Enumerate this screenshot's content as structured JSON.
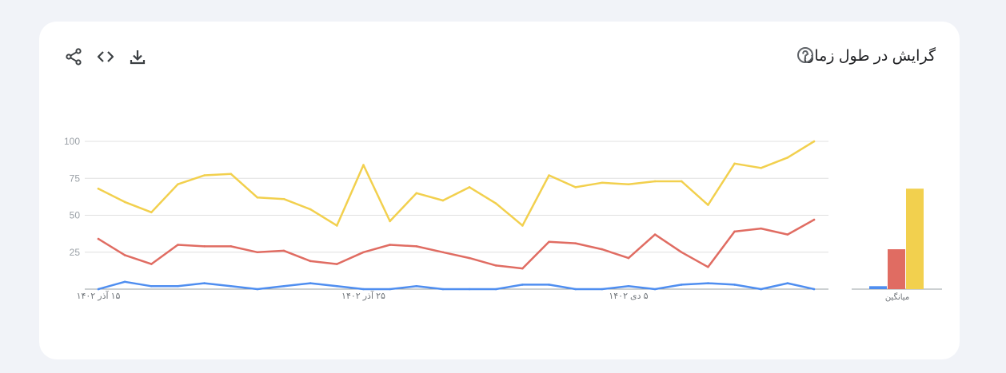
{
  "header": {
    "title": "گرایش در طول زمان",
    "help_icon": "help-circle-icon",
    "tools": [
      {
        "name": "share",
        "icon": "share-icon"
      },
      {
        "name": "embed",
        "icon": "code-icon"
      },
      {
        "name": "download",
        "icon": "download-icon"
      }
    ]
  },
  "colors": {
    "blue": "#4285f4",
    "red": "#db4437",
    "yellow": "#f4c20d"
  },
  "chart_data": [
    {
      "type": "line",
      "ylim": [
        0,
        100
      ],
      "yticks": [
        "100",
        "75",
        "50",
        "25"
      ],
      "x_tick_labels": [
        "۱۵ آذر ۱۴۰۲",
        "۲۵ آذر ۱۴۰۲",
        "۵ دی ۱۴۰۲"
      ],
      "grid": true,
      "series": [
        {
          "color": "#f2d04e",
          "values": [
            68,
            59,
            52,
            71,
            77,
            78,
            62,
            61,
            54,
            43,
            84,
            46,
            65,
            60,
            69,
            58,
            43,
            77,
            69,
            72,
            71,
            73,
            73,
            57,
            85,
            82,
            89,
            100
          ]
        },
        {
          "color": "#e06c62",
          "values": [
            34,
            23,
            17,
            30,
            29,
            29,
            25,
            26,
            19,
            17,
            25,
            30,
            29,
            25,
            21,
            16,
            14,
            32,
            31,
            27,
            21,
            37,
            25,
            15,
            39,
            41,
            37,
            47
          ]
        },
        {
          "color": "#4f8ef0",
          "values": [
            0,
            5,
            2,
            2,
            4,
            2,
            0,
            2,
            4,
            2,
            0,
            0,
            2,
            0,
            0,
            0,
            3,
            3,
            0,
            0,
            2,
            0,
            3,
            4,
            3,
            0,
            4,
            0
          ]
        }
      ]
    },
    {
      "type": "bar",
      "categories": [
        "میانگین"
      ],
      "series": [
        {
          "color": "#4f8ef0",
          "values": [
            2
          ]
        },
        {
          "color": "#e06c62",
          "values": [
            27
          ]
        },
        {
          "color": "#f2d04e",
          "values": [
            68
          ]
        }
      ]
    }
  ]
}
